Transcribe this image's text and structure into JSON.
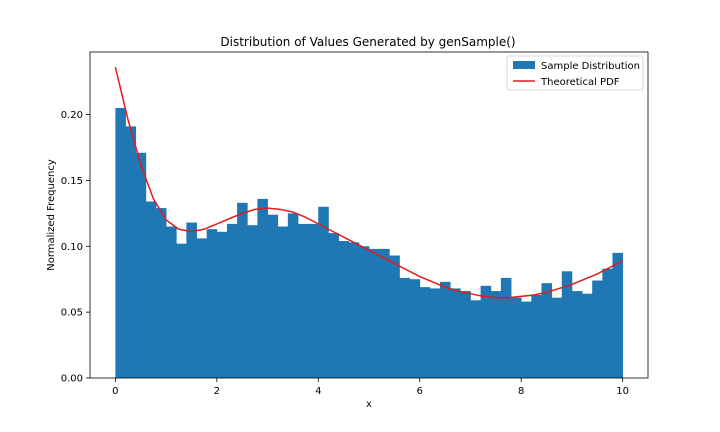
{
  "chart_data": {
    "type": "bar",
    "title": "Distribution of Values Generated by genSample()",
    "xlabel": "x",
    "ylabel": "Normalized Frequency",
    "xlim": [
      -0.5,
      10.5
    ],
    "ylim": [
      0,
      0.2475
    ],
    "xticks": [
      0,
      2,
      4,
      6,
      8,
      10
    ],
    "yticks": [
      0.0,
      0.05,
      0.1,
      0.15,
      0.2
    ],
    "ytick_labels": [
      "0.00",
      "0.05",
      "0.10",
      "0.15",
      "0.20"
    ],
    "grid": false,
    "legend_position": "top-right",
    "histogram": {
      "name": "Sample Distribution",
      "color": "#1f77b4",
      "bin_start": 0,
      "bin_width": 0.2,
      "values": [
        0.205,
        0.191,
        0.171,
        0.134,
        0.129,
        0.115,
        0.102,
        0.118,
        0.106,
        0.113,
        0.111,
        0.117,
        0.133,
        0.116,
        0.136,
        0.124,
        0.115,
        0.125,
        0.117,
        0.117,
        0.13,
        0.11,
        0.104,
        0.103,
        0.1,
        0.098,
        0.098,
        0.093,
        0.076,
        0.075,
        0.069,
        0.068,
        0.073,
        0.068,
        0.066,
        0.059,
        0.07,
        0.066,
        0.076,
        0.061,
        0.058,
        0.063,
        0.072,
        0.061,
        0.081,
        0.066,
        0.064,
        0.074,
        0.083,
        0.095
      ]
    },
    "pdf_line": {
      "name": "Theoretical PDF",
      "color": "#e41a1c",
      "x": [
        0,
        0.25,
        0.5,
        0.75,
        1.0,
        1.25,
        1.5,
        1.75,
        2.0,
        2.25,
        2.5,
        2.75,
        3.0,
        3.25,
        3.5,
        3.75,
        4.0,
        4.25,
        4.5,
        4.75,
        5.0,
        5.25,
        5.5,
        5.75,
        6.0,
        6.25,
        6.5,
        6.75,
        7.0,
        7.25,
        7.5,
        7.75,
        8.0,
        8.25,
        8.5,
        8.75,
        9.0,
        9.25,
        9.5,
        9.75,
        10.0
      ],
      "y": [
        0.236,
        0.196,
        0.162,
        0.136,
        0.12,
        0.113,
        0.111,
        0.113,
        0.117,
        0.121,
        0.125,
        0.128,
        0.129,
        0.128,
        0.126,
        0.122,
        0.117,
        0.112,
        0.107,
        0.102,
        0.097,
        0.092,
        0.087,
        0.082,
        0.077,
        0.073,
        0.069,
        0.066,
        0.064,
        0.062,
        0.061,
        0.061,
        0.062,
        0.063,
        0.065,
        0.068,
        0.071,
        0.075,
        0.079,
        0.084,
        0.089
      ]
    }
  }
}
